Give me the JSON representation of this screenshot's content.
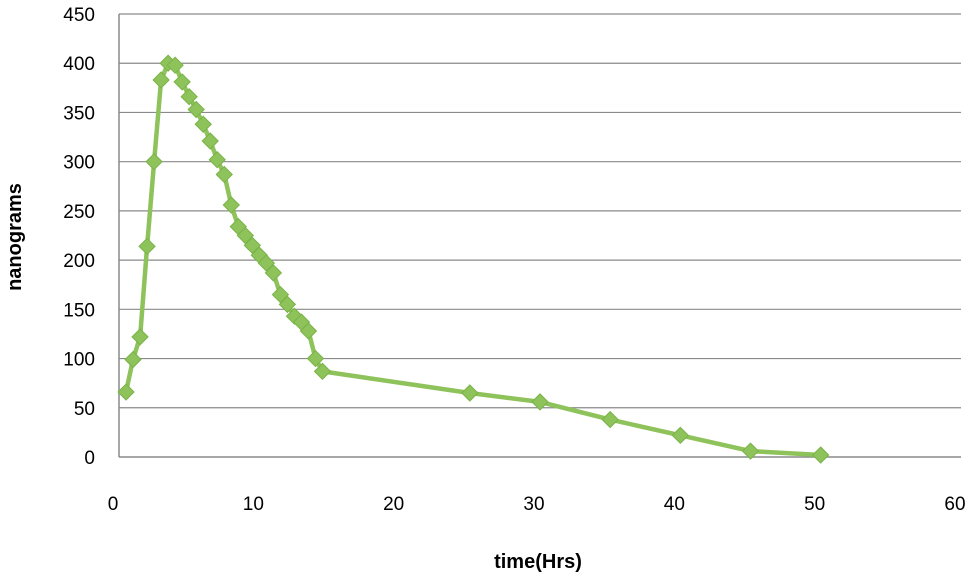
{
  "chart_data": {
    "type": "scatter",
    "title": "",
    "xlabel": "time(Hrs)",
    "ylabel": "nanograms",
    "xlim": [
      0,
      60
    ],
    "ylim": [
      0,
      450
    ],
    "x_ticks": [
      0,
      10,
      20,
      30,
      40,
      50,
      60
    ],
    "y_ticks": [
      0,
      50,
      100,
      150,
      200,
      250,
      300,
      350,
      400,
      450
    ],
    "grid": "horizontal",
    "legend": "none",
    "series_color": "#8ec25a",
    "marker": "diamond",
    "lines": true,
    "series": [
      {
        "x": [
          0.5,
          1,
          1.5,
          2,
          2.5,
          3,
          3.5,
          4,
          4.5,
          5,
          5.5,
          6,
          6.5,
          7,
          7.5,
          8,
          8.5,
          9,
          9.5,
          10,
          10.5,
          11,
          11.5,
          12,
          12.5,
          13,
          13.5,
          14,
          14.5,
          25,
          30,
          35,
          40,
          45,
          50
        ],
        "y": [
          66,
          99,
          122,
          214,
          300,
          383,
          400,
          398,
          381,
          366,
          353,
          338,
          321,
          302,
          287,
          256,
          234,
          225,
          215,
          205,
          197,
          187,
          165,
          155,
          143,
          137,
          128,
          100,
          87,
          65,
          56,
          38,
          22,
          6,
          2
        ]
      }
    ]
  }
}
